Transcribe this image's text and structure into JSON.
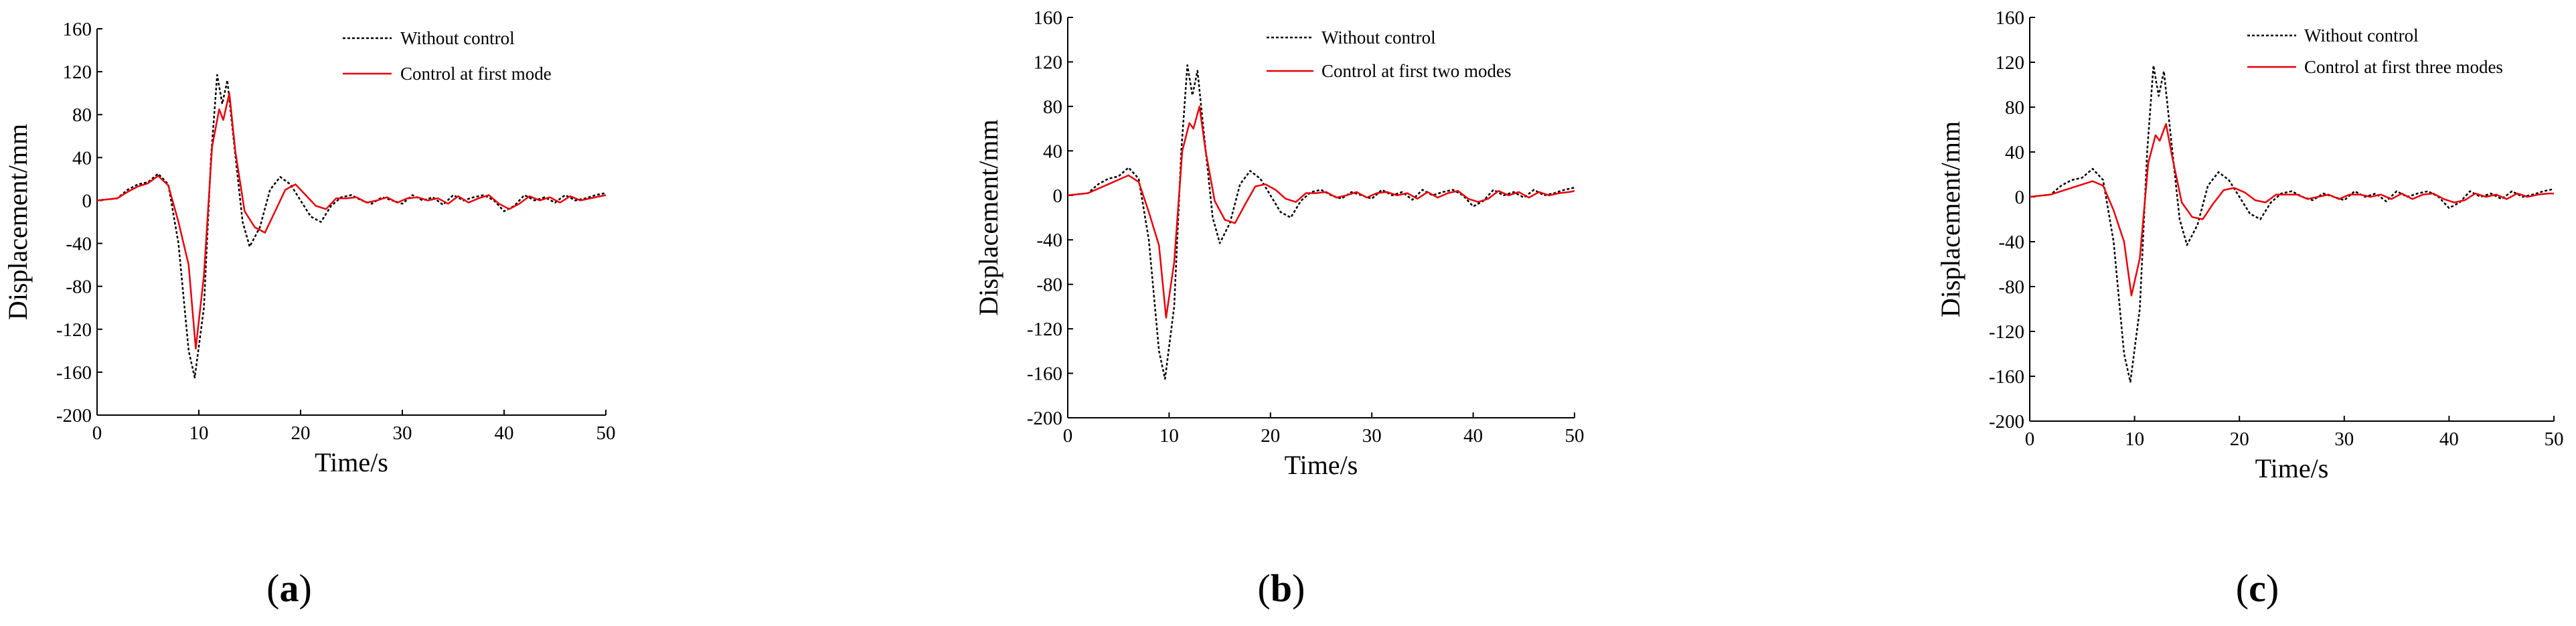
{
  "chart_data": [
    {
      "type": "line",
      "panel": "a",
      "caption_letter": "a",
      "xlabel": "Time/s",
      "ylabel": "Displacement/mm",
      "xlim": [
        0,
        50
      ],
      "ylim": [
        -200,
        160
      ],
      "xticks": [
        "0",
        "10",
        "20",
        "30",
        "40",
        "50"
      ],
      "yticks": [
        "160",
        "120",
        "80",
        "40",
        "0",
        "-40",
        "-80",
        "-120",
        "-160",
        "-200"
      ],
      "series": [
        {
          "name": "Without control",
          "style": "dotted",
          "color": "#000000",
          "x": [
            0,
            2,
            3,
            4,
            5,
            6,
            7,
            8,
            9,
            9.6,
            10.5,
            11.2,
            11.8,
            12.3,
            12.8,
            13.5,
            14.3,
            15,
            16,
            17,
            18,
            19,
            20,
            21,
            22,
            23,
            24,
            25,
            26,
            27,
            28,
            29,
            30,
            31,
            32,
            33,
            34,
            35,
            36,
            37,
            38,
            39,
            40,
            41,
            42,
            43,
            44,
            45,
            46,
            47,
            48,
            49,
            50
          ],
          "y": [
            0,
            2,
            10,
            15,
            17,
            25,
            15,
            -40,
            -140,
            -165,
            -100,
            40,
            117,
            90,
            112,
            50,
            -20,
            -43,
            -25,
            10,
            22,
            15,
            0,
            -15,
            -20,
            -5,
            3,
            5,
            0,
            -3,
            3,
            0,
            -3,
            5,
            0,
            3,
            -4,
            5,
            0,
            3,
            5,
            0,
            -10,
            -5,
            5,
            0,
            3,
            -2,
            5,
            0,
            2,
            5,
            7
          ]
        },
        {
          "name": "Control at first mode",
          "style": "solid",
          "color": "#e8000b",
          "x": [
            0,
            2,
            3,
            4,
            5,
            6,
            7,
            8,
            9,
            9.7,
            10.5,
            11.3,
            12,
            12.4,
            13,
            13.6,
            14.5,
            15.5,
            16.5,
            17.5,
            18.5,
            19.5,
            20.5,
            21.5,
            22.5,
            23.5,
            24.5,
            25.5,
            26.5,
            27.5,
            28.5,
            29.5,
            30.5,
            31.5,
            32.5,
            33.5,
            34.5,
            35.5,
            36.5,
            37.5,
            38.5,
            39.5,
            40.5,
            41.5,
            42.5,
            43.5,
            44.5,
            45.5,
            46.5,
            47.5,
            48.5,
            49.5,
            50
          ],
          "y": [
            0,
            2,
            8,
            13,
            16,
            23,
            14,
            -20,
            -60,
            -138,
            -70,
            50,
            85,
            75,
            100,
            45,
            -10,
            -25,
            -30,
            -10,
            10,
            15,
            5,
            -5,
            -8,
            2,
            2,
            3,
            -2,
            0,
            3,
            -2,
            2,
            3,
            0,
            2,
            -3,
            4,
            -2,
            2,
            5,
            -3,
            -8,
            -3,
            4,
            0,
            3,
            -2,
            4,
            0,
            2,
            4,
            5
          ]
        }
      ]
    },
    {
      "type": "line",
      "panel": "b",
      "caption_letter": "b",
      "xlabel": "Time/s",
      "ylabel": "Displacement/mm",
      "xlim": [
        0,
        50
      ],
      "ylim": [
        -200,
        160
      ],
      "xticks": [
        "0",
        "10",
        "20",
        "30",
        "40",
        "50"
      ],
      "yticks": [
        "160",
        "120",
        "80",
        "40",
        "0",
        "-40",
        "-80",
        "-120",
        "-160",
        "-200"
      ],
      "series": [
        {
          "name": "Without control",
          "style": "dotted",
          "color": "#000000",
          "x": [
            0,
            2,
            3,
            4,
            5,
            6,
            7,
            8,
            9,
            9.6,
            10.5,
            11.2,
            11.8,
            12.3,
            12.8,
            13.5,
            14.3,
            15,
            16,
            17,
            18,
            19,
            20,
            21,
            22,
            23,
            24,
            25,
            26,
            27,
            28,
            29,
            30,
            31,
            32,
            33,
            34,
            35,
            36,
            37,
            38,
            39,
            40,
            41,
            42,
            43,
            44,
            45,
            46,
            47,
            48,
            49,
            50
          ],
          "y": [
            0,
            2,
            10,
            15,
            17,
            25,
            15,
            -40,
            -140,
            -165,
            -100,
            40,
            117,
            90,
            112,
            50,
            -20,
            -43,
            -25,
            10,
            22,
            15,
            0,
            -15,
            -20,
            -5,
            3,
            5,
            0,
            -3,
            3,
            0,
            -3,
            5,
            0,
            3,
            -4,
            5,
            0,
            3,
            5,
            0,
            -10,
            -5,
            5,
            0,
            3,
            -2,
            5,
            0,
            2,
            5,
            7
          ]
        },
        {
          "name": "Control at first two modes",
          "style": "solid",
          "color": "#e8000b",
          "x": [
            0,
            2,
            3,
            4,
            5,
            6,
            7,
            8,
            9,
            9.7,
            10.5,
            11.3,
            12,
            12.4,
            13,
            13.6,
            14.5,
            15.5,
            16.5,
            17.5,
            18.5,
            19.5,
            20.5,
            21.5,
            22.5,
            23.5,
            24.5,
            25.5,
            26.5,
            27.5,
            28.5,
            29.5,
            30.5,
            31.5,
            32.5,
            33.5,
            34.5,
            35.5,
            36.5,
            37.5,
            38.5,
            39.5,
            40.5,
            41.5,
            42.5,
            43.5,
            44.5,
            45.5,
            46.5,
            47.5,
            48.5,
            49.5,
            50
          ],
          "y": [
            0,
            2,
            6,
            10,
            14,
            18,
            12,
            -15,
            -45,
            -110,
            -60,
            40,
            65,
            60,
            80,
            40,
            -5,
            -22,
            -25,
            -8,
            8,
            10,
            5,
            -3,
            -6,
            2,
            2,
            3,
            -2,
            0,
            3,
            -2,
            2,
            3,
            0,
            2,
            -3,
            3,
            -2,
            2,
            4,
            -3,
            -6,
            -3,
            4,
            0,
            3,
            -2,
            3,
            0,
            2,
            3,
            4
          ]
        }
      ]
    },
    {
      "type": "line",
      "panel": "c",
      "caption_letter": "c",
      "xlabel": "Time/s",
      "ylabel": "Displacement/mm",
      "xlim": [
        0,
        50
      ],
      "ylim": [
        -200,
        160
      ],
      "xticks": [
        "0",
        "10",
        "20",
        "30",
        "40",
        "50"
      ],
      "yticks": [
        "160",
        "120",
        "80",
        "40",
        "0",
        "-40",
        "-80",
        "-120",
        "-160",
        "-200"
      ],
      "series": [
        {
          "name": "Without control",
          "style": "dotted",
          "color": "#000000",
          "x": [
            0,
            2,
            3,
            4,
            5,
            6,
            7,
            8,
            9,
            9.6,
            10.5,
            11.2,
            11.8,
            12.3,
            12.8,
            13.5,
            14.3,
            15,
            16,
            17,
            18,
            19,
            20,
            21,
            22,
            23,
            24,
            25,
            26,
            27,
            28,
            29,
            30,
            31,
            32,
            33,
            34,
            35,
            36,
            37,
            38,
            39,
            40,
            41,
            42,
            43,
            44,
            45,
            46,
            47,
            48,
            49,
            50
          ],
          "y": [
            0,
            2,
            10,
            15,
            17,
            25,
            15,
            -40,
            -140,
            -165,
            -100,
            40,
            117,
            90,
            112,
            50,
            -20,
            -43,
            -25,
            10,
            22,
            15,
            0,
            -15,
            -20,
            -5,
            3,
            5,
            0,
            -3,
            3,
            0,
            -3,
            5,
            0,
            3,
            -4,
            5,
            0,
            3,
            5,
            0,
            -10,
            -5,
            5,
            0,
            3,
            -2,
            5,
            0,
            2,
            5,
            7
          ]
        },
        {
          "name": "Control at first three modes",
          "style": "solid",
          "color": "#e8000b",
          "x": [
            0,
            2,
            3,
            4,
            5,
            6,
            7,
            8,
            9,
            9.7,
            10.5,
            11.3,
            12,
            12.4,
            13,
            13.6,
            14.5,
            15.5,
            16.5,
            17.5,
            18.5,
            19.5,
            20.5,
            21.5,
            22.5,
            23.5,
            24.5,
            25.5,
            26.5,
            27.5,
            28.5,
            29.5,
            30.5,
            31.5,
            32.5,
            33.5,
            34.5,
            35.5,
            36.5,
            37.5,
            38.5,
            39.5,
            40.5,
            41.5,
            42.5,
            43.5,
            44.5,
            45.5,
            46.5,
            47.5,
            48.5,
            49.5,
            50
          ],
          "y": [
            0,
            2,
            5,
            8,
            11,
            14,
            10,
            -12,
            -40,
            -88,
            -55,
            30,
            55,
            50,
            65,
            35,
            -5,
            -18,
            -20,
            -6,
            6,
            8,
            4,
            -3,
            -5,
            2,
            2,
            2,
            -2,
            0,
            2,
            -2,
            2,
            2,
            0,
            2,
            -2,
            3,
            -2,
            2,
            3,
            -2,
            -5,
            -3,
            3,
            0,
            2,
            -2,
            3,
            0,
            2,
            3,
            3
          ]
        }
      ]
    }
  ]
}
